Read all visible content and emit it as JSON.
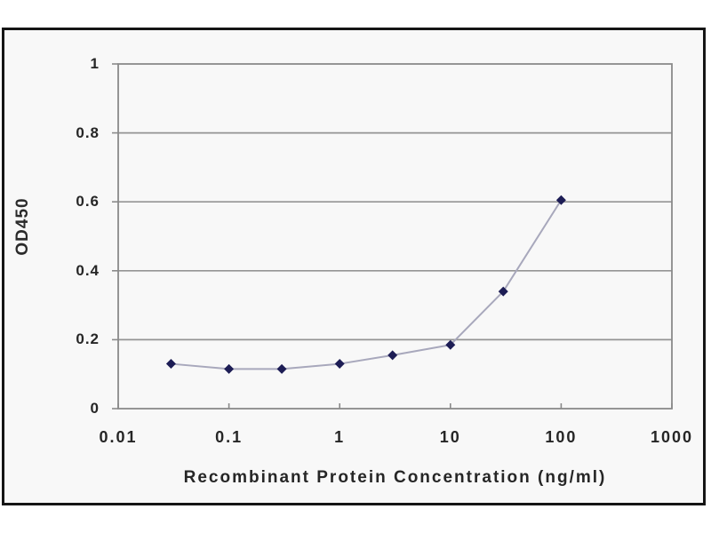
{
  "chart_data": {
    "type": "line",
    "title": "",
    "xlabel": "Recombinant Protein Concentration (ng/ml)",
    "ylabel": "OD450",
    "x_scale": "log",
    "xlim": [
      0.01,
      1000
    ],
    "ylim": [
      0,
      1
    ],
    "x_ticks": [
      0.01,
      0.1,
      1,
      10,
      100,
      1000
    ],
    "x_tick_labels": [
      "0.01",
      "0.1",
      "1",
      "10",
      "100",
      "1000"
    ],
    "y_ticks": [
      0,
      0.2,
      0.4,
      0.6,
      0.8,
      1
    ],
    "y_tick_labels": [
      "0",
      "0.2",
      "0.4",
      "0.6",
      "0.8",
      "1"
    ],
    "grid": "horizontal",
    "legend": "none",
    "series": [
      {
        "name": "OD450",
        "marker": "diamond",
        "marker_color": "#1d1d55",
        "line_color": "#a8a8bc",
        "x": [
          0.03,
          0.1,
          0.3,
          1,
          3,
          10,
          30,
          100
        ],
        "y": [
          0.13,
          0.115,
          0.115,
          0.13,
          0.155,
          0.185,
          0.34,
          0.605
        ]
      }
    ],
    "colors": {
      "gridline": "#949494",
      "frame": "#8a8a8a",
      "axis_text": "#262626",
      "chart_bg": "#f8f8f8",
      "outer_border": "#151515",
      "page_bg": "#ffffff"
    }
  }
}
